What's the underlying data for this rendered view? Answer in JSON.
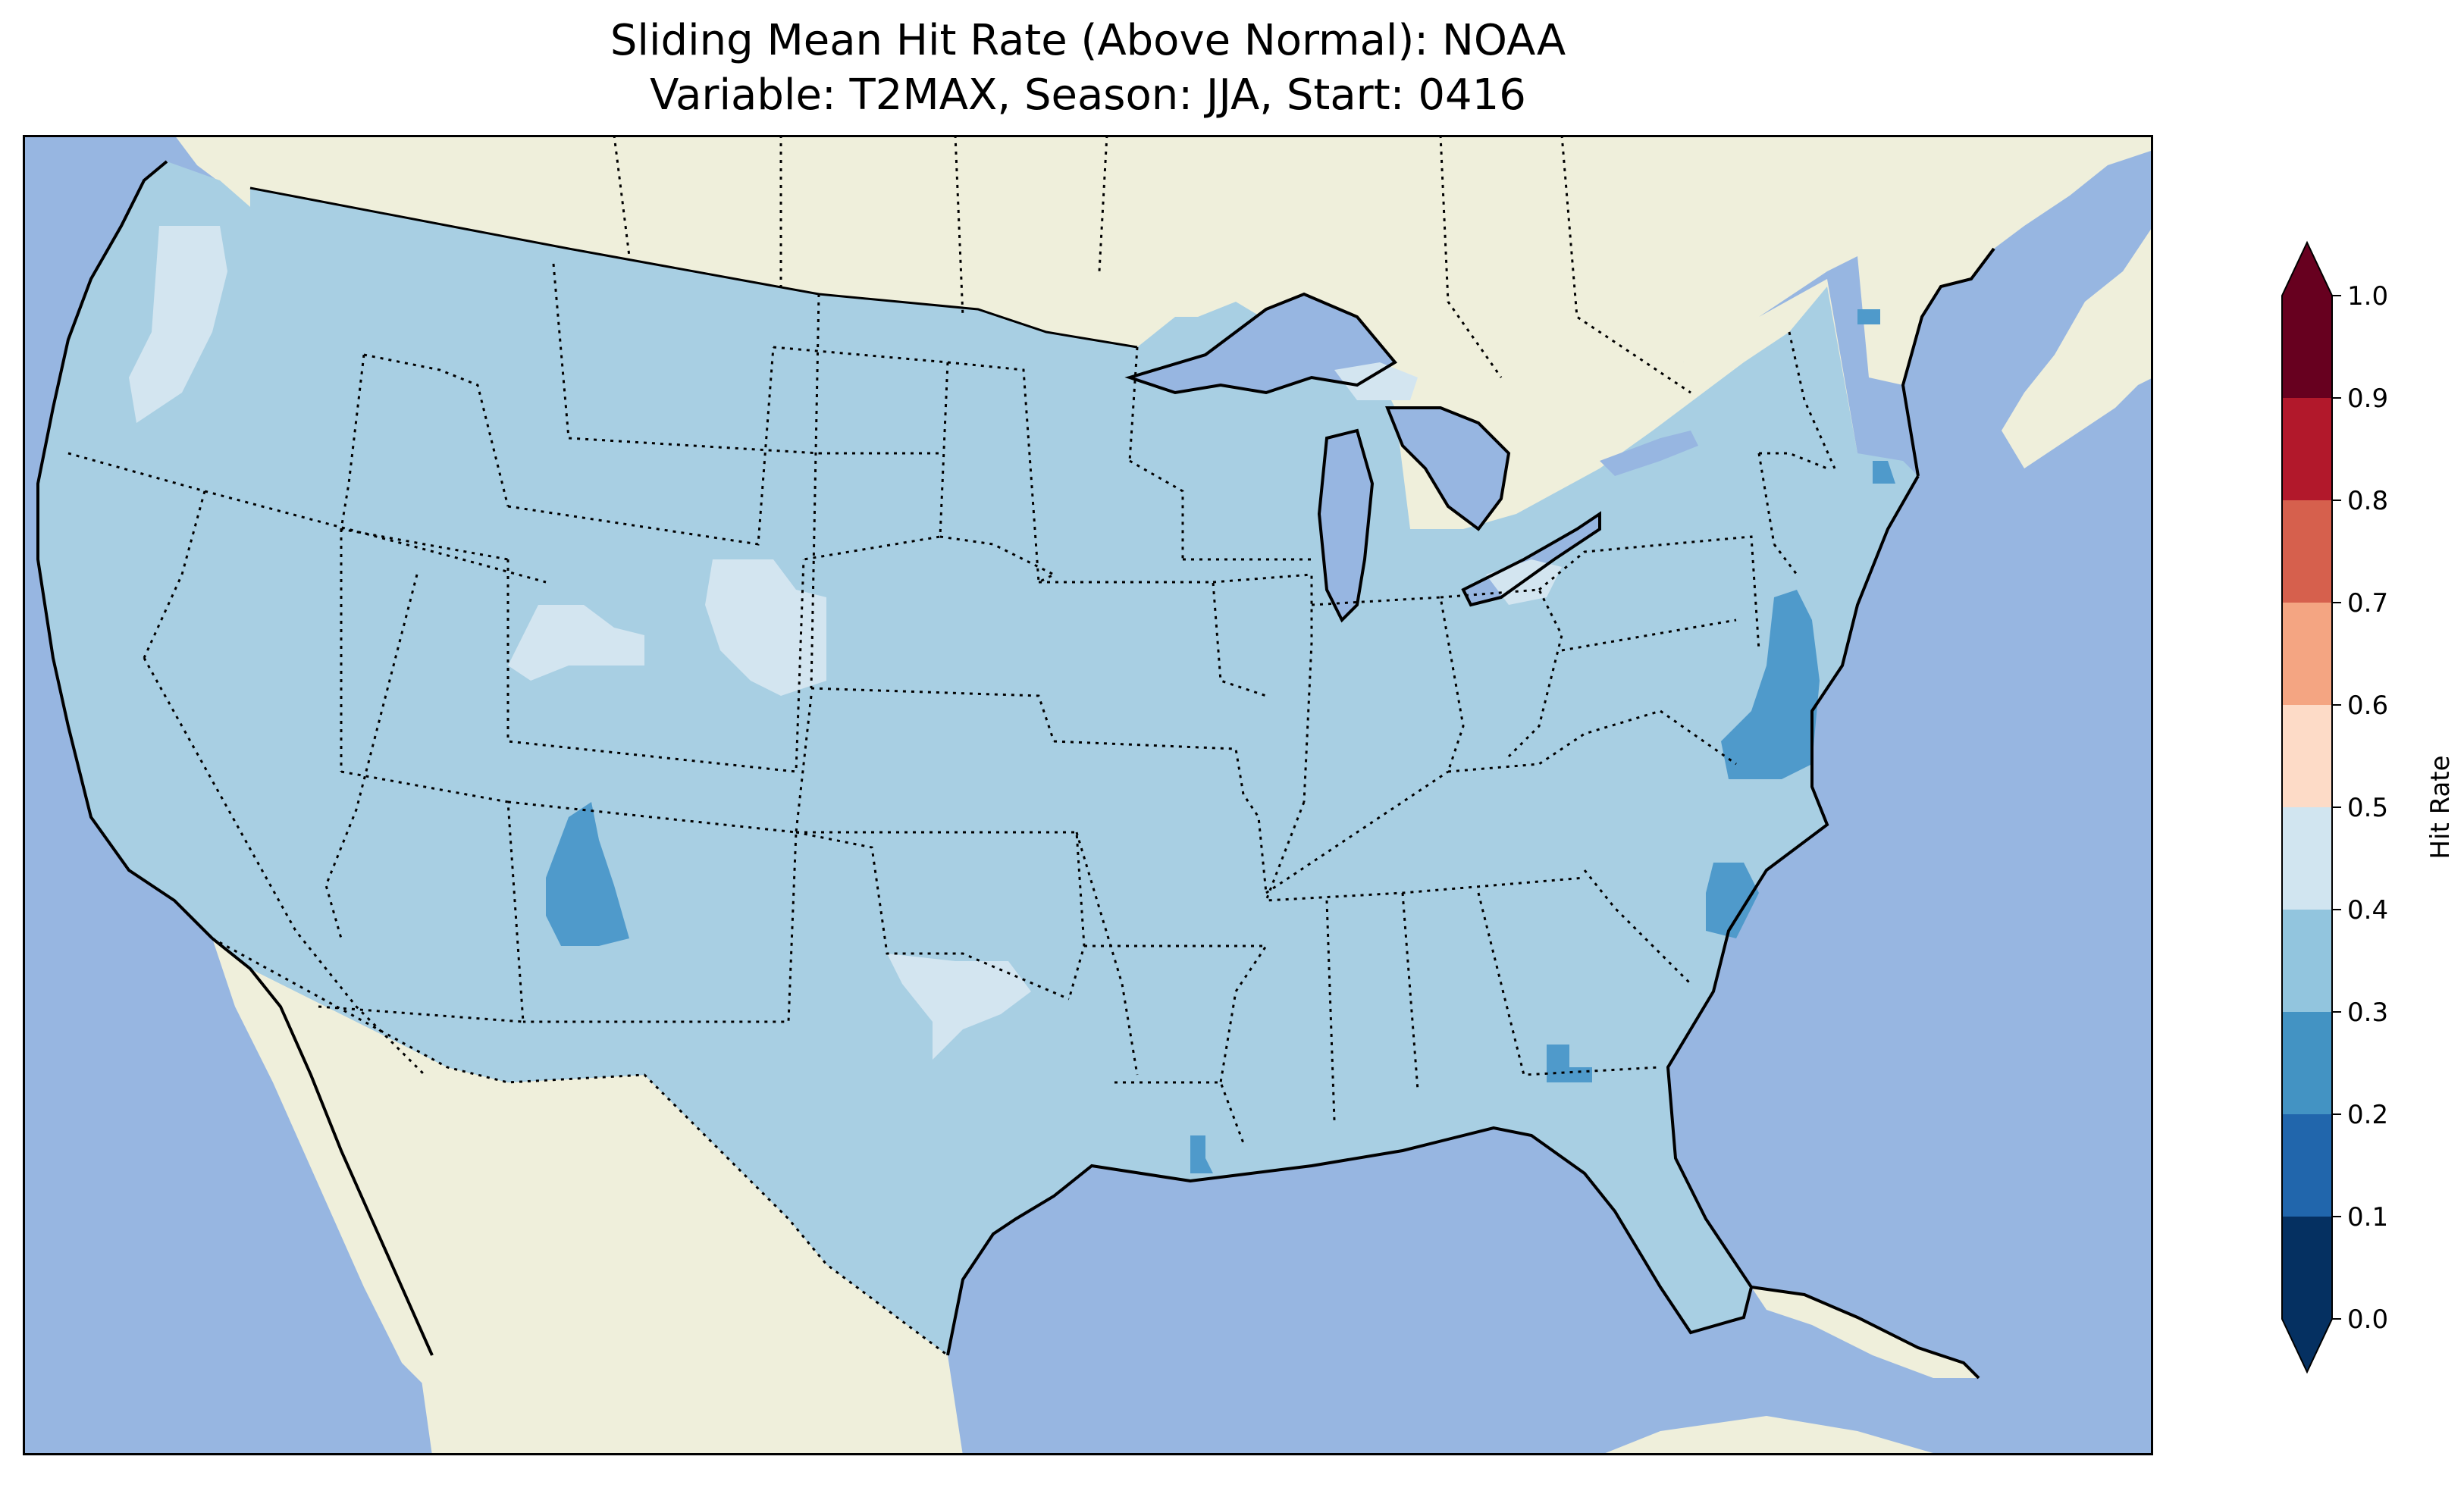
{
  "title_line1": "Sliding Mean Hit Rate (Above Normal): NOAA",
  "title_line2": "Variable: T2MAX, Season: JJA, Start: 0416",
  "colorbar": {
    "label": "Hit Rate",
    "ticks": [
      "0.0",
      "0.1",
      "0.2",
      "0.3",
      "0.4",
      "0.5",
      "0.6",
      "0.7",
      "0.8",
      "0.9",
      "1.0"
    ],
    "bins": [
      {
        "range": [
          0.0,
          0.1
        ],
        "color": "#053061"
      },
      {
        "range": [
          0.1,
          0.2
        ],
        "color": "#2166ac"
      },
      {
        "range": [
          0.2,
          0.3
        ],
        "color": "#4393c3"
      },
      {
        "range": [
          0.3,
          0.4
        ],
        "color": "#92c5de"
      },
      {
        "range": [
          0.4,
          0.5
        ],
        "color": "#d1e5f0"
      },
      {
        "range": [
          0.5,
          0.6
        ],
        "color": "#fddbc7"
      },
      {
        "range": [
          0.6,
          0.7
        ],
        "color": "#f4a582"
      },
      {
        "range": [
          0.7,
          0.8
        ],
        "color": "#d6604d"
      },
      {
        "range": [
          0.8,
          0.9
        ],
        "color": "#b2182b"
      },
      {
        "range": [
          0.9,
          1.0
        ],
        "color": "#67001f"
      }
    ],
    "extend": "both"
  },
  "map": {
    "ocean_color": "#97b6e1",
    "land_color": "#efefdb",
    "field_base_color": "#a8cfe3",
    "field_base_value_range": [
      0.3,
      0.4
    ]
  }
}
